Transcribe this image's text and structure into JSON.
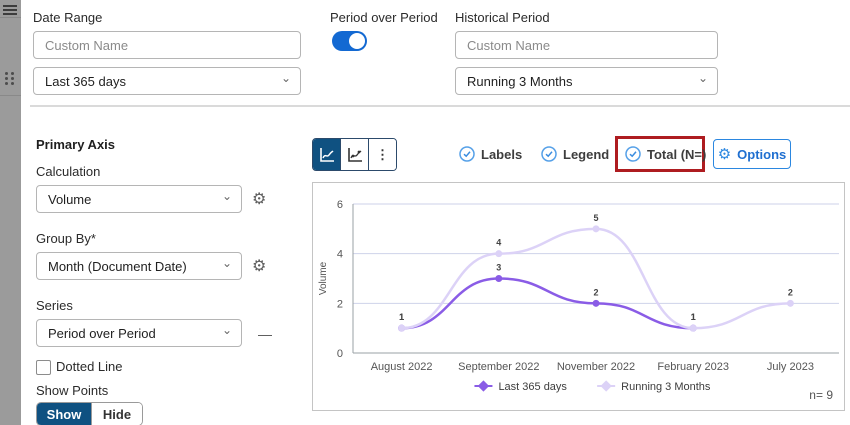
{
  "top_bar": {
    "date_range_label": "Date Range",
    "date_range_placeholder": "Custom Name",
    "date_range_value": "Last 365 days",
    "period_over_period_label": "Period over Period",
    "toggle_state": "on",
    "historical_period_label": "Historical Period",
    "historical_placeholder": "Custom Name",
    "historical_value": "Running 3 Months"
  },
  "primary_axis": {
    "title": "Primary Axis",
    "calculation_label": "Calculation",
    "calculation_value": "Volume",
    "group_by_label": "Group By*",
    "group_by_value": "Month (Document Date)",
    "series_label": "Series",
    "series_value": "Period over Period",
    "dotted_line_label": "Dotted Line",
    "dotted_line_checked": false,
    "show_points_label": "Show Points",
    "show_label": "Show",
    "hide_label": "Hide",
    "show_selected": "Show"
  },
  "toolbar": {
    "labels_label": "Labels",
    "legend_label": "Legend",
    "total_label": "Total (N=)",
    "options_label": "Options",
    "kebab_icon": "⋮"
  },
  "colors": {
    "accent_navy": "#0f5181",
    "toggle_blue": "#1369d2",
    "options_blue": "#2b87e0",
    "check_blue": "#55a0e8",
    "annotation_red": "#ae1c20",
    "series1": "#8a5ce6",
    "series2": "#dcd2f7"
  },
  "chart_data": {
    "type": "line",
    "title": "",
    "xlabel": "",
    "ylabel": "Volume",
    "categories": [
      "August 2022",
      "September 2022",
      "November 2022",
      "February 2023",
      "July 2023"
    ],
    "series": [
      {
        "name": "Last 365 days",
        "color": "#8a5ce6",
        "values": [
          1,
          3,
          2,
          1,
          null
        ]
      },
      {
        "name": "Running 3 Months",
        "color": "#dcd2f7",
        "values": [
          1,
          4,
          5,
          1,
          2
        ]
      }
    ],
    "ylim": [
      0,
      6
    ],
    "yticks": [
      0,
      2,
      4,
      6
    ],
    "grid": true,
    "legend_position": "bottom",
    "sample_note": "n= 9"
  }
}
